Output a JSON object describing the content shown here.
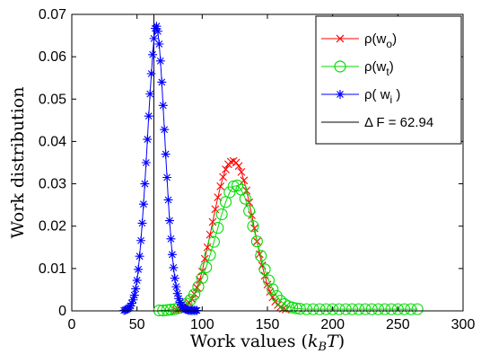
{
  "chart_data": {
    "type": "line",
    "xlabel_main": "Work values (",
    "xlabel_math_k": "k",
    "xlabel_math_sub": "B",
    "xlabel_math_T": "T",
    "xlabel_close": ")",
    "ylabel": "Work distribution",
    "xlim": [
      0,
      300
    ],
    "ylim": [
      0,
      0.07
    ],
    "xticks": [
      "0",
      "50",
      "100",
      "150",
      "200",
      "250",
      "300"
    ],
    "yticks": [
      "0",
      "0.01",
      "0.02",
      "0.03",
      "0.04",
      "0.05",
      "0.06",
      "0.07"
    ],
    "legend_position": "top-right",
    "vline": {
      "x": 62.94,
      "color": "#000000"
    },
    "series": [
      {
        "legend_main": "ρ(w",
        "legend_sub": "o",
        "legend_close": ")",
        "color": "#ff0000",
        "marker": "x",
        "x": [
          80,
          82,
          84,
          86,
          88,
          90,
          92,
          94,
          96,
          98,
          100,
          102,
          104,
          106,
          108,
          110,
          112,
          114,
          116,
          118,
          120,
          122,
          124,
          126,
          128,
          130,
          132,
          134,
          136,
          138,
          140,
          142,
          144,
          146,
          148,
          150,
          152,
          154,
          156,
          158,
          160,
          162,
          164
        ],
        "y": [
          0.0002,
          0.0003,
          0.0005,
          0.0008,
          0.0012,
          0.0019,
          0.0028,
          0.004,
          0.0055,
          0.0073,
          0.0093,
          0.0123,
          0.015,
          0.018,
          0.021,
          0.024,
          0.0268,
          0.0294,
          0.0316,
          0.0334,
          0.0346,
          0.0352,
          0.0354,
          0.035,
          0.0342,
          0.0328,
          0.0308,
          0.0284,
          0.0256,
          0.0226,
          0.0195,
          0.0164,
          0.0134,
          0.0107,
          0.0083,
          0.0062,
          0.0045,
          0.0032,
          0.0022,
          0.0014,
          0.0009,
          0.0005,
          0.0003
        ]
      },
      {
        "legend_main": "ρ(w",
        "legend_sub": "t",
        "legend_close": ")",
        "color": "#00dd00",
        "marker": "o",
        "x": [
          67,
          70,
          73,
          76,
          79,
          82,
          85,
          88,
          91,
          94,
          97,
          100,
          103,
          106,
          109,
          112,
          115,
          118,
          121,
          124,
          127,
          130,
          133,
          136,
          139,
          142,
          145,
          148,
          151,
          154,
          157,
          160,
          163,
          166,
          169,
          172,
          175,
          180,
          185,
          190,
          195,
          200,
          205,
          210,
          215,
          220,
          225,
          230,
          235,
          240,
          245,
          250,
          255,
          260,
          265
        ],
        "y": [
          0.0001,
          0.0001,
          0.0002,
          0.0003,
          0.0004,
          0.0007,
          0.0011,
          0.0017,
          0.0026,
          0.0039,
          0.0057,
          0.0078,
          0.0103,
          0.0132,
          0.0163,
          0.0196,
          0.0228,
          0.0257,
          0.028,
          0.0294,
          0.0296,
          0.0286,
          0.0265,
          0.0236,
          0.02,
          0.0164,
          0.013,
          0.0098,
          0.0072,
          0.0051,
          0.0035,
          0.0024,
          0.0016,
          0.0011,
          0.0008,
          0.0006,
          0.0005,
          0.0004,
          0.0004,
          0.0004,
          0.0004,
          0.0004,
          0.0004,
          0.0004,
          0.0004,
          0.0004,
          0.0004,
          0.0004,
          0.0004,
          0.0004,
          0.0004,
          0.0004,
          0.0004,
          0.0004,
          0.0004
        ]
      },
      {
        "legend_main": "ρ( w",
        "legend_sub": "i",
        "legend_close": " )",
        "color": "#0000ff",
        "marker": "*",
        "x": [
          40,
          41,
          42,
          43,
          44,
          45,
          46,
          47,
          48,
          49,
          50,
          51,
          52,
          53,
          54,
          55,
          56,
          57,
          58,
          59,
          60,
          61,
          62,
          63,
          64,
          65,
          66,
          67,
          68,
          69,
          70,
          71,
          72,
          73,
          74,
          75,
          76,
          77,
          78,
          79,
          80,
          81,
          82,
          83,
          84,
          85,
          86,
          87,
          88,
          89,
          90,
          91,
          92,
          93,
          94,
          95,
          96
        ],
        "y": [
          0.0001,
          0.0002,
          0.0003,
          0.0005,
          0.0008,
          0.0012,
          0.0018,
          0.0026,
          0.0037,
          0.0052,
          0.0072,
          0.0098,
          0.0129,
          0.0166,
          0.0207,
          0.0252,
          0.03,
          0.035,
          0.0405,
          0.046,
          0.0512,
          0.056,
          0.0605,
          0.0643,
          0.0667,
          0.0672,
          0.066,
          0.063,
          0.059,
          0.054,
          0.0485,
          0.0428,
          0.037,
          0.0315,
          0.0262,
          0.0213,
          0.017,
          0.0133,
          0.0102,
          0.0077,
          0.0057,
          0.0041,
          0.0029,
          0.002,
          0.0014,
          0.0009,
          0.0006,
          0.0004,
          0.0003,
          0.0002,
          0.0001,
          0.0001,
          0.0001,
          0.0001,
          0.0001,
          0.0001,
          0.0001
        ]
      }
    ],
    "vline_legend_delta": "Δ",
    "vline_legend_rest": " F = 62.94"
  }
}
